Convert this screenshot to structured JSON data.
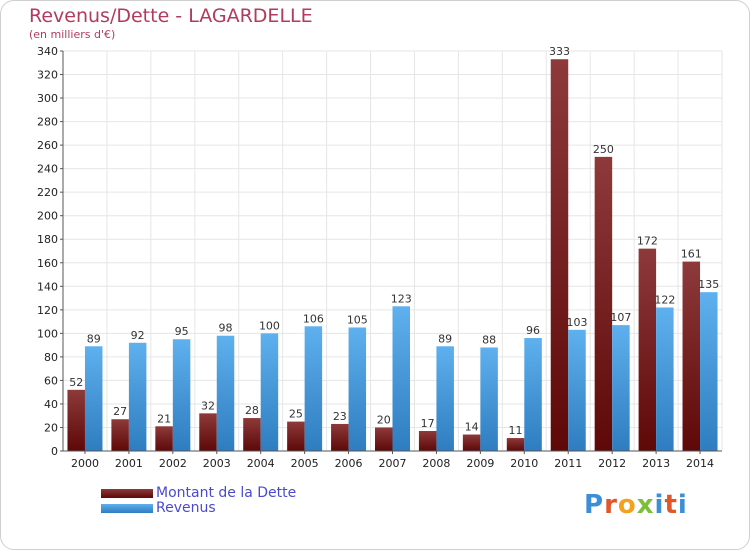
{
  "title": "Revenus/Dette - LAGARDELLE",
  "subtitle": "(en milliers d'€)",
  "logo": {
    "letters": [
      "P",
      "r",
      "o",
      "x",
      "i",
      "t",
      "i"
    ],
    "colors": [
      "#3a8fd8",
      "#e0572a",
      "#f2a21f",
      "#7bbf3a",
      "#3a8fd8",
      "#e0572a",
      "#3a8fd8"
    ],
    "text": "Proxiti"
  },
  "colors": {
    "dette_dark": "#5e0808",
    "dette_light": "#8e3a3a",
    "revenus_dark": "#2e7dc0",
    "revenus_light": "#5fb0ee",
    "grid": "#e6e6e6",
    "title": "#b23b5c"
  },
  "chart_data": {
    "type": "bar",
    "title": "Revenus/Dette - LAGARDELLE",
    "subtitle": "(en milliers d'€)",
    "categories": [
      "2000",
      "2001",
      "2002",
      "2003",
      "2004",
      "2005",
      "2006",
      "2007",
      "2008",
      "2009",
      "2010",
      "2011",
      "2012",
      "2013",
      "2014"
    ],
    "series": [
      {
        "name": "Montant de la Dette",
        "values": [
          52,
          27,
          21,
          32,
          28,
          25,
          23,
          20,
          17,
          14,
          11,
          333,
          250,
          172,
          161
        ]
      },
      {
        "name": "Revenus",
        "values": [
          89,
          92,
          95,
          98,
          100,
          106,
          105,
          123,
          89,
          88,
          96,
          103,
          107,
          122,
          135
        ]
      }
    ],
    "ylim": [
      0,
      340
    ],
    "yticks": [
      0,
      20,
      40,
      60,
      80,
      100,
      120,
      140,
      160,
      180,
      200,
      220,
      240,
      260,
      280,
      300,
      320,
      340
    ],
    "grid": true,
    "legend_position": "bottom-left"
  }
}
